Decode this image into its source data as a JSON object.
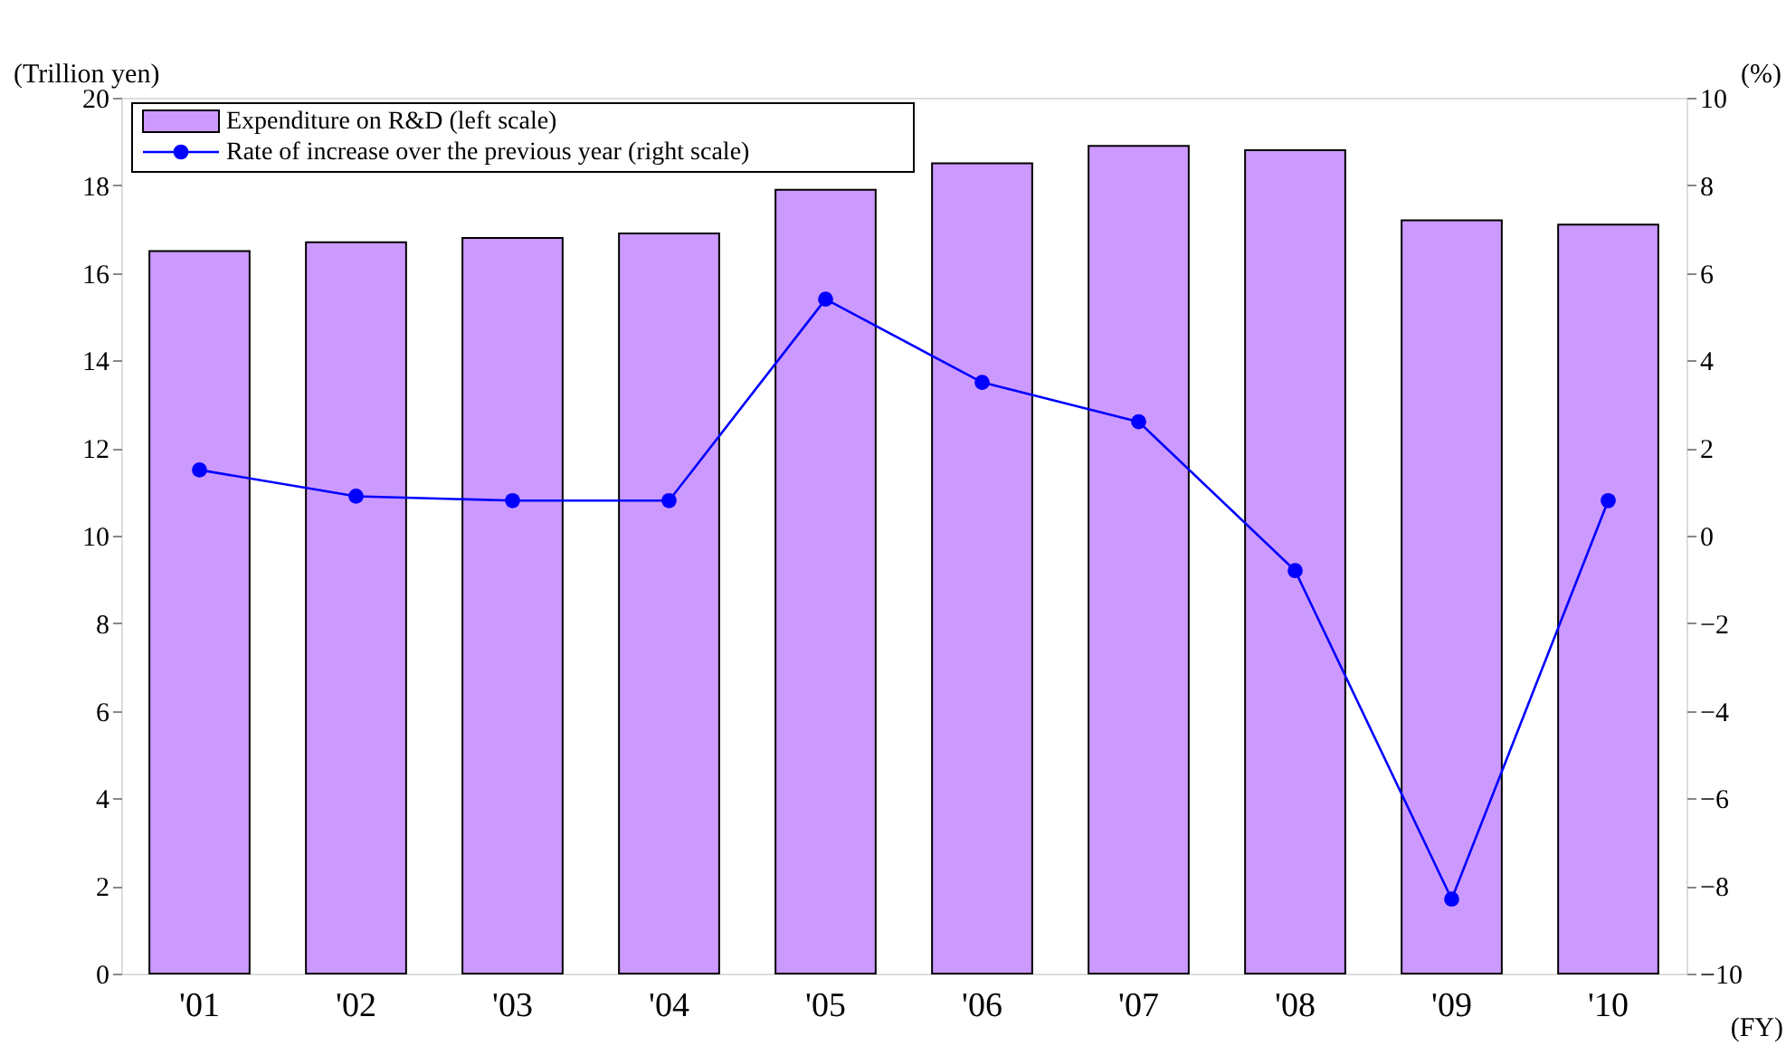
{
  "chart_data": {
    "type": "bar",
    "categories": [
      "'01",
      "'02",
      "'03",
      "'04",
      "'05",
      "'06",
      "'07",
      "'08",
      "'09",
      "'10"
    ],
    "series": [
      {
        "name": "Expenditure on R&D  (left scale)",
        "color": "#cc99ff",
        "values": [
          16.5,
          16.7,
          16.8,
          16.9,
          17.9,
          18.5,
          18.9,
          18.8,
          17.2,
          17.1
        ]
      },
      {
        "name": "Rate of increase over the previous year  (right scale)",
        "type": "line",
        "axis": "y2",
        "color": "#0000ff",
        "marker": "circle",
        "values": [
          1.5,
          0.9,
          0.8,
          0.8,
          5.4,
          3.5,
          2.6,
          -0.8,
          -8.3,
          0.8
        ]
      }
    ],
    "ylabel": "(Trillion  yen)",
    "y2label": "(%)",
    "xlabel": "(FY)",
    "ylim": [
      0,
      20
    ],
    "yticks": [
      0,
      2,
      4,
      6,
      8,
      10,
      12,
      14,
      16,
      18,
      20
    ],
    "y2lim": [
      -10,
      10
    ],
    "y2ticks": [
      -10,
      -8,
      -6,
      -4,
      -2,
      0,
      2,
      4,
      6,
      8,
      10
    ],
    "legend": "top left",
    "grid": false
  }
}
